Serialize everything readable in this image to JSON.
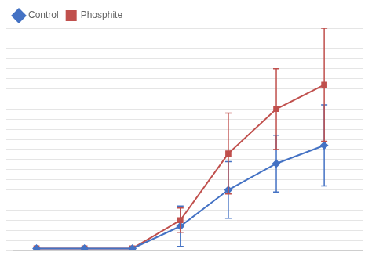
{
  "chart_data": {
    "type": "line",
    "x": [
      1,
      2,
      3,
      4,
      5,
      6,
      7
    ],
    "series": [
      {
        "name": "Control",
        "color": "#4472C4",
        "marker": "diamond",
        "values": [
          0.01,
          0.01,
          0.01,
          0.12,
          0.3,
          0.43,
          0.52
        ],
        "yerr": [
          0.0,
          0.0,
          0.0,
          0.1,
          0.14,
          0.14,
          0.2
        ]
      },
      {
        "name": "Phosphite",
        "color": "#C0504D",
        "marker": "square",
        "values": [
          0.01,
          0.01,
          0.01,
          0.15,
          0.48,
          0.7,
          0.82
        ],
        "yerr": [
          0.0,
          0.0,
          0.0,
          0.06,
          0.2,
          0.2,
          0.28
        ]
      }
    ],
    "xlim": [
      0.5,
      7.8
    ],
    "xticks": [
      1,
      2,
      3,
      4,
      5,
      6,
      7
    ],
    "ylim": [
      0,
      1.1
    ],
    "yticks": [
      0,
      0.05,
      0.1,
      0.15,
      0.2,
      0.25,
      0.3,
      0.35,
      0.4,
      0.45,
      0.5,
      0.55,
      0.6,
      0.65,
      0.7,
      0.75,
      0.8,
      0.85,
      0.9,
      0.95,
      1.0,
      1.05,
      1.1
    ],
    "grid": "y",
    "tick_labels": false,
    "legend": "upper left"
  }
}
